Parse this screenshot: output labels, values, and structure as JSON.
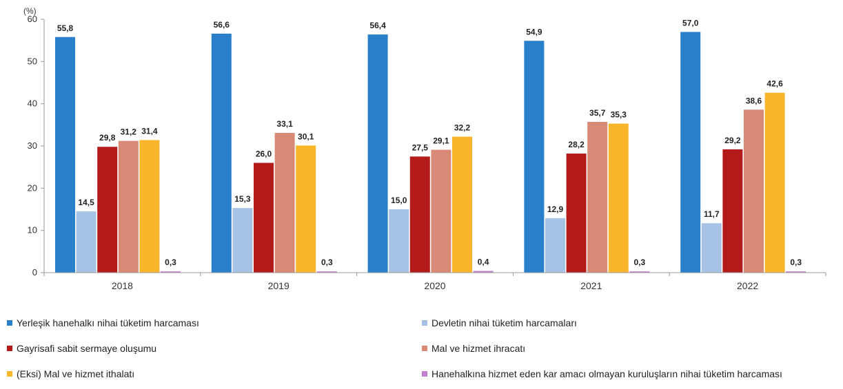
{
  "chart_data": {
    "type": "bar",
    "unit_label": "(%)",
    "categories": [
      "2018",
      "2019",
      "2020",
      "2021",
      "2022"
    ],
    "ylim": [
      0,
      60
    ],
    "yticks": [
      0,
      10,
      20,
      30,
      40,
      50,
      60
    ],
    "grid": false,
    "legend_position": "bottom",
    "series": [
      {
        "name": "Yerleşik hanehalkı nihai tüketim harcaması",
        "color": "#2a7fcb",
        "values": [
          55.8,
          56.6,
          56.4,
          54.9,
          57.0
        ],
        "labels": [
          "55,8",
          "56,6",
          "56,4",
          "54,9",
          "57,0"
        ]
      },
      {
        "name": "Devletin nihai tüketim harcamaları",
        "color": "#a6c3e6",
        "values": [
          14.5,
          15.3,
          15.0,
          12.9,
          11.7
        ],
        "labels": [
          "14,5",
          "15,3",
          "15,0",
          "12,9",
          "11,7"
        ]
      },
      {
        "name": "Gayrisafi sabit sermaye oluşumu",
        "color": "#b31b1b",
        "values": [
          29.8,
          26.0,
          27.5,
          28.2,
          29.2
        ],
        "labels": [
          "29,8",
          "26,0",
          "27,5",
          "28,2",
          "29,2"
        ]
      },
      {
        "name": "Mal ve hizmet ihracatı",
        "color": "#d98a76",
        "values": [
          31.2,
          33.1,
          29.1,
          35.7,
          38.6
        ],
        "labels": [
          "31,2",
          "33,1",
          "29,1",
          "35,7",
          "38,6"
        ]
      },
      {
        "name": "(Eksi) Mal ve hizmet ithalatı",
        "color": "#f9b52b",
        "values": [
          31.4,
          30.1,
          32.2,
          35.3,
          42.6
        ],
        "labels": [
          "31,4",
          "30,1",
          "32,2",
          "35,3",
          "42,6"
        ]
      },
      {
        "name": "Hanehalkına hizmet eden kar amacı olmayan kuruluşların nihai tüketim harcaması",
        "color": "#c37fd0",
        "values": [
          0.3,
          0.3,
          0.4,
          0.3,
          0.3
        ],
        "labels": [
          "0,3",
          "0,3",
          "0,4",
          "0,3",
          "0,3"
        ]
      }
    ]
  }
}
